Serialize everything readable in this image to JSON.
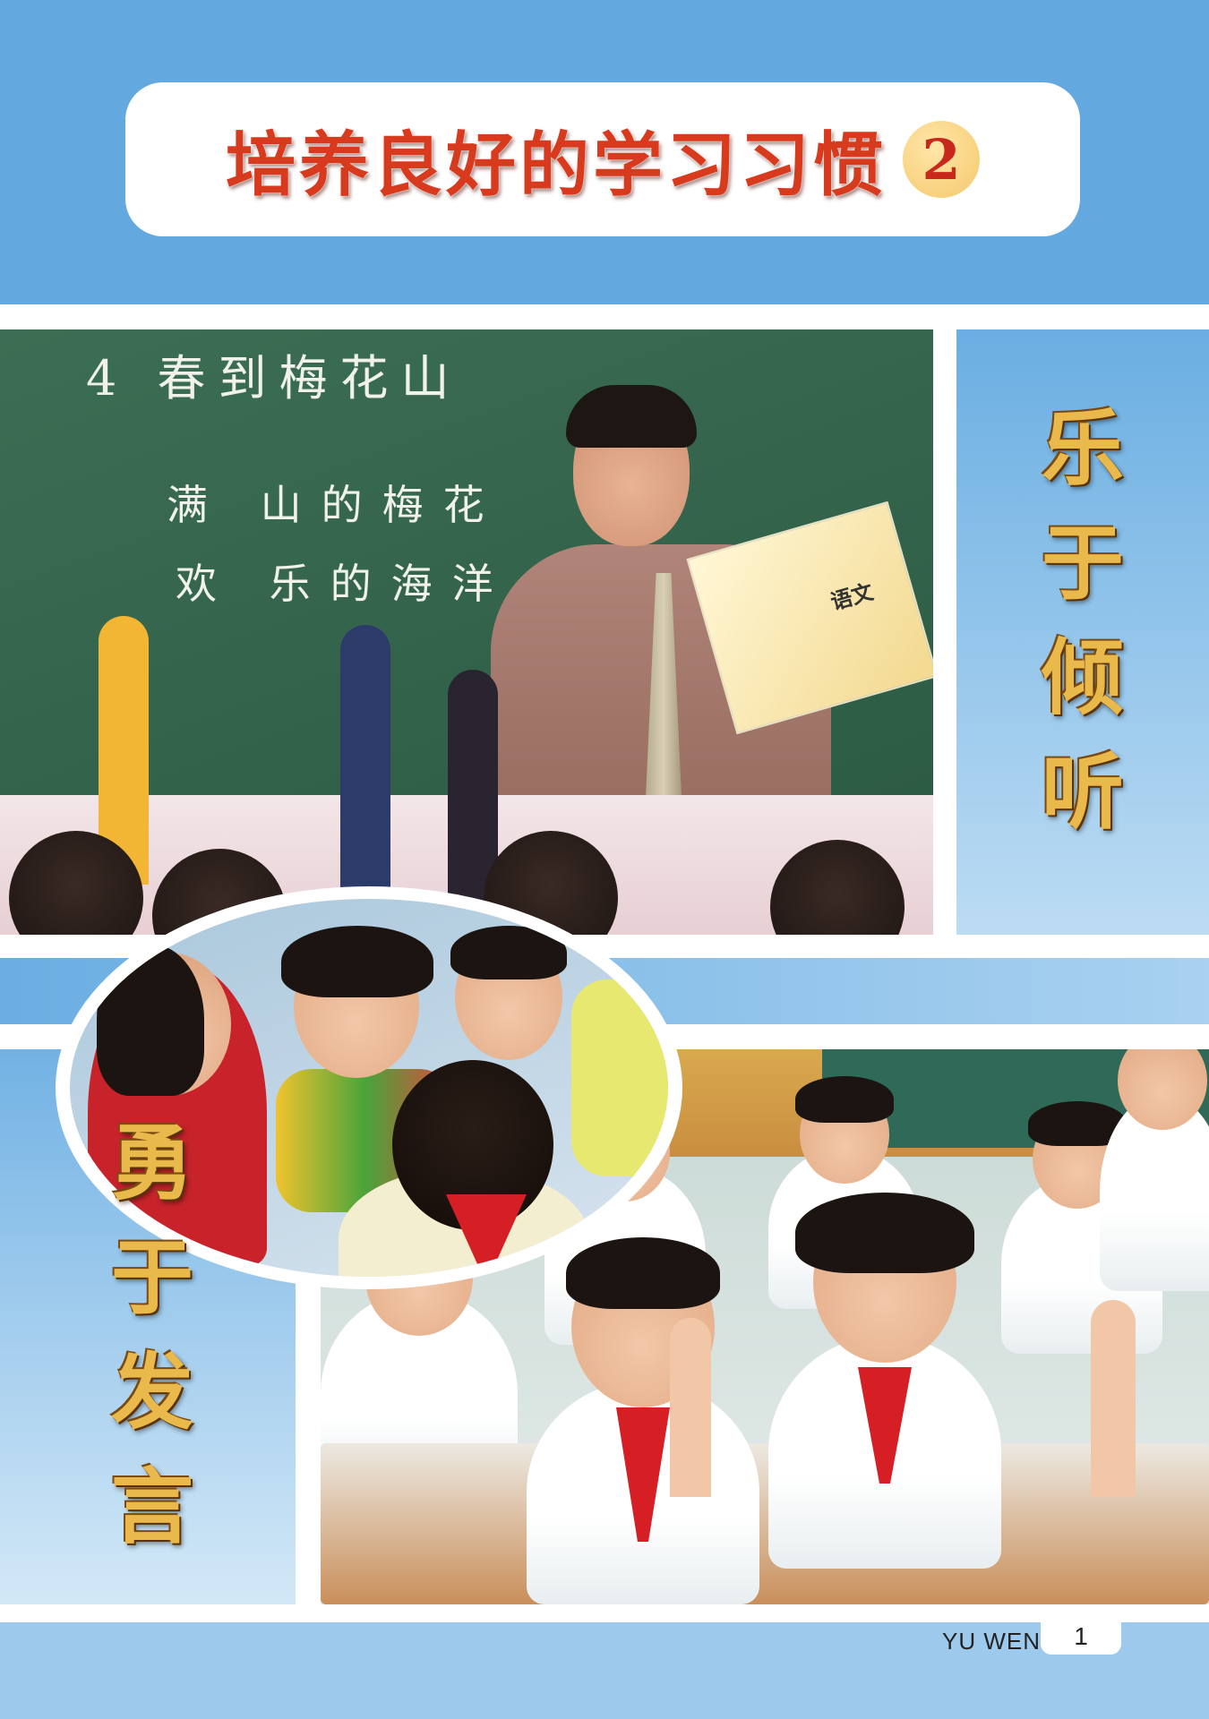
{
  "title": {
    "text": "培养良好的学习习惯",
    "number": "2"
  },
  "photo_teacher": {
    "board_title": "4 春到梅花山",
    "board_line1": "满 山的梅花",
    "board_line2": "欢 乐的海洋",
    "book_label": "语文"
  },
  "labels": {
    "listen": [
      "乐",
      "于",
      "倾",
      "听"
    ],
    "speak": [
      "勇",
      "于",
      "发",
      "言"
    ]
  },
  "footer": {
    "label": "YU WEN",
    "page": "1"
  }
}
